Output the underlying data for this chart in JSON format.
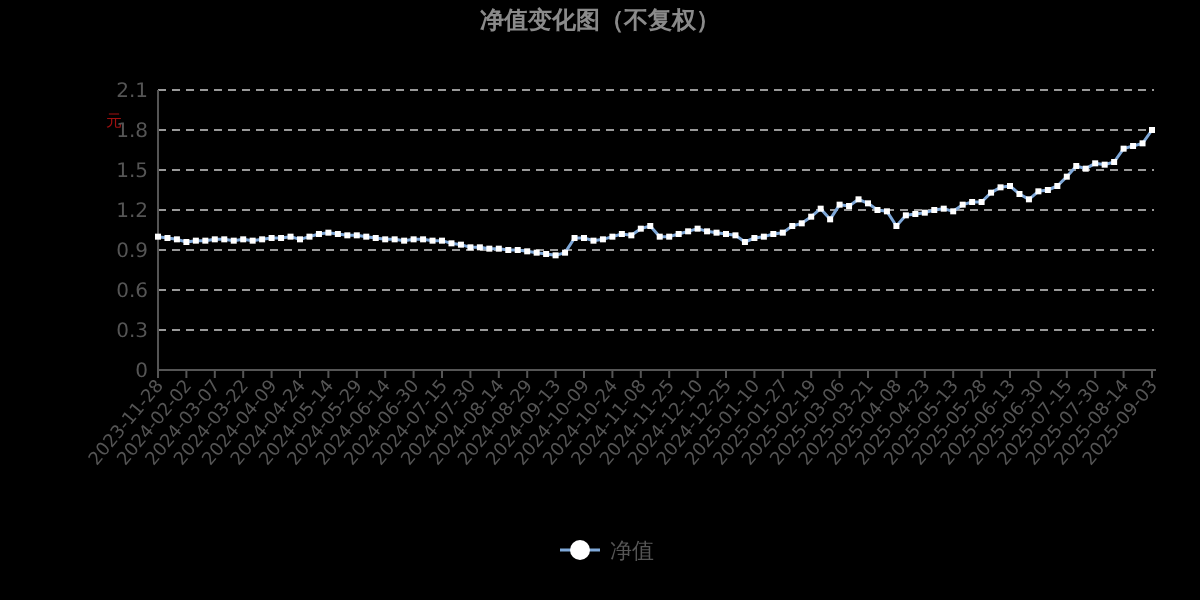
{
  "chart_data": {
    "type": "line",
    "title": "净值变化图（不复权）",
    "ylabel": "元",
    "categories": [
      "2023-11-28",
      null,
      null,
      "2024-02-02",
      null,
      null,
      "2024-03-07",
      null,
      null,
      "2024-03-22",
      null,
      null,
      "2024-04-09",
      null,
      null,
      "2024-04-24",
      null,
      null,
      "2024-05-14",
      null,
      null,
      "2024-05-29",
      null,
      null,
      "2024-06-14",
      null,
      null,
      "2024-06-30",
      null,
      null,
      "2024-07-15",
      null,
      null,
      "2024-07-30",
      null,
      null,
      "2024-08-14",
      null,
      null,
      "2024-08-29",
      null,
      null,
      "2024-09-13",
      null,
      null,
      "2024-10-09",
      null,
      null,
      "2024-10-24",
      null,
      null,
      "2024-11-08",
      null,
      null,
      "2024-11-25",
      null,
      null,
      "2024-12-10",
      null,
      null,
      "2024-12-25",
      null,
      null,
      "2025-01-10",
      null,
      null,
      "2025-01-27",
      null,
      null,
      "2025-02-19",
      null,
      null,
      "2025-03-06",
      null,
      null,
      "2025-03-21",
      null,
      null,
      "2025-04-08",
      null,
      null,
      "2025-04-23",
      null,
      null,
      "2025-05-13",
      null,
      null,
      "2025-05-28",
      null,
      null,
      "2025-06-13",
      null,
      null,
      "2025-06-30",
      null,
      null,
      "2025-07-15",
      null,
      null,
      "2025-07-30",
      null,
      null,
      "2025-08-14",
      null,
      null,
      "2025-09-03"
    ],
    "series": [
      {
        "name": "净值",
        "color": "#7fa8d8",
        "values": [
          1.0,
          0.99,
          0.98,
          0.96,
          0.97,
          0.97,
          0.98,
          0.98,
          0.97,
          0.98,
          0.97,
          0.98,
          0.99,
          0.99,
          1.0,
          0.98,
          1.0,
          1.02,
          1.03,
          1.02,
          1.01,
          1.01,
          1.0,
          0.99,
          0.98,
          0.98,
          0.97,
          0.98,
          0.98,
          0.97,
          0.97,
          0.95,
          0.94,
          0.92,
          0.92,
          0.91,
          0.91,
          0.9,
          0.9,
          0.89,
          0.88,
          0.87,
          0.86,
          0.88,
          0.99,
          0.99,
          0.97,
          0.98,
          1.0,
          1.02,
          1.01,
          1.06,
          1.08,
          1.0,
          1.0,
          1.02,
          1.04,
          1.06,
          1.04,
          1.03,
          1.02,
          1.01,
          0.96,
          0.99,
          1.0,
          1.02,
          1.03,
          1.08,
          1.1,
          1.15,
          1.21,
          1.13,
          1.24,
          1.23,
          1.28,
          1.25,
          1.2,
          1.19,
          1.08,
          1.16,
          1.17,
          1.18,
          1.2,
          1.21,
          1.19,
          1.24,
          1.26,
          1.26,
          1.33,
          1.37,
          1.38,
          1.32,
          1.28,
          1.34,
          1.35,
          1.38,
          1.45,
          1.53,
          1.51,
          1.55,
          1.54,
          1.56,
          1.66,
          1.68,
          1.7,
          1.8
        ]
      }
    ],
    "ylim": [
      0,
      2.1
    ],
    "yticks": [
      0,
      0.3,
      0.6,
      0.9,
      1.2,
      1.5,
      1.8,
      2.1
    ],
    "grid": "y",
    "legend": "bottom",
    "marker": "square",
    "line_style": "solid"
  }
}
